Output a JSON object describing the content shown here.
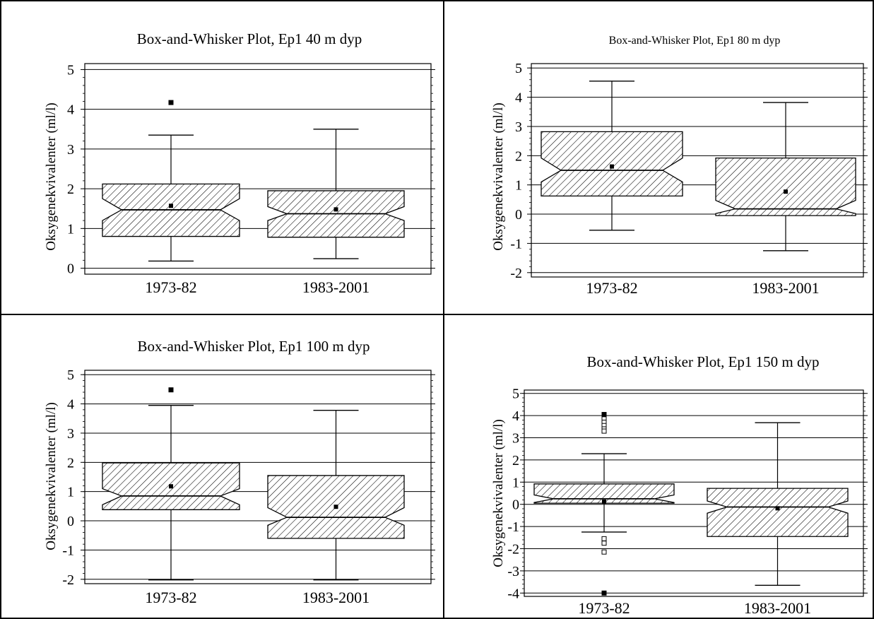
{
  "chart_data": [
    {
      "type": "box",
      "title": "Box-and-Whisker Plot, Ep1 40 m dyp",
      "ylabel": "Oksygenekvivalenter (ml/l)",
      "xlabel": "",
      "categories": [
        "1973-82",
        "1983-2001"
      ],
      "yticks": [
        0,
        1,
        2,
        3,
        4,
        5
      ],
      "ylim": [
        -0.15,
        5.15
      ],
      "grid": true,
      "notched": true,
      "boxes": [
        {
          "category": "1973-82",
          "min": 0.18,
          "q1": 0.8,
          "median": 1.47,
          "q3": 2.12,
          "max": 3.35,
          "mean": 1.57,
          "notch_low": 1.2,
          "notch_high": 1.75,
          "outliers": [
            4.17
          ]
        },
        {
          "category": "1983-2001",
          "min": 0.24,
          "q1": 0.78,
          "median": 1.37,
          "q3": 1.95,
          "max": 3.5,
          "mean": 1.48,
          "notch_low": 1.2,
          "notch_high": 1.55,
          "outliers": []
        }
      ]
    },
    {
      "type": "box",
      "title": "Box-and-Whisker Plot, Ep1 80 m dyp",
      "ylabel": "Oksygenekvivalenter (ml/l)",
      "xlabel": "",
      "categories": [
        "1973-82",
        "1983-2001"
      ],
      "yticks": [
        -2,
        -1,
        0,
        1,
        2,
        3,
        4,
        5
      ],
      "ylim": [
        -2.15,
        5.15
      ],
      "grid": true,
      "notched": true,
      "boxes": [
        {
          "category": "1973-82",
          "min": -0.55,
          "q1": 0.62,
          "median": 1.5,
          "q3": 2.82,
          "max": 4.55,
          "mean": 1.63,
          "notch_low": 1.1,
          "notch_high": 1.92,
          "outliers": []
        },
        {
          "category": "1983-2001",
          "min": -1.25,
          "q1": -0.05,
          "median": 0.18,
          "q3": 1.92,
          "max": 3.82,
          "mean": 0.77,
          "notch_low": 0.02,
          "notch_high": 0.47,
          "outliers": []
        }
      ]
    },
    {
      "type": "box",
      "title": "Box-and-Whisker Plot, Ep1 100 m dyp",
      "ylabel": "Oksygenekvivalenter (ml/l)",
      "xlabel": "",
      "categories": [
        "1973-82",
        "1983-2001"
      ],
      "yticks": [
        -2,
        -1,
        0,
        1,
        2,
        3,
        4,
        5
      ],
      "ylim": [
        -2.15,
        5.15
      ],
      "grid": true,
      "notched": true,
      "boxes": [
        {
          "category": "1973-82",
          "min": -2.02,
          "q1": 0.38,
          "median": 0.85,
          "q3": 1.98,
          "max": 3.95,
          "mean": 1.18,
          "notch_low": 0.55,
          "notch_high": 1.1,
          "outliers": [
            4.48
          ]
        },
        {
          "category": "1983-2001",
          "min": -2.02,
          "q1": -0.6,
          "median": 0.12,
          "q3": 1.55,
          "max": 3.78,
          "mean": 0.48,
          "notch_low": -0.15,
          "notch_high": 0.45,
          "outliers": []
        }
      ]
    },
    {
      "type": "box",
      "title": "Box-and-Whisker Plot, Ep1 150 m dyp",
      "ylabel": "Oksygenekvivalenter (ml/l)",
      "xlabel": "",
      "categories": [
        "1973-82",
        "1983-2001"
      ],
      "yticks": [
        -4,
        -3,
        -2,
        -1,
        0,
        1,
        2,
        3,
        4,
        5
      ],
      "ylim": [
        -4.15,
        5.15
      ],
      "grid": true,
      "notched": true,
      "boxes": [
        {
          "category": "1973-82",
          "min": -1.25,
          "q1": 0.05,
          "median": 0.25,
          "q3": 0.92,
          "max": 2.28,
          "mean": 0.12,
          "notch_low": 0.08,
          "notch_high": 0.42,
          "outliers": [
            4.05,
            3.85,
            3.7,
            3.55,
            3.4,
            3.3,
            -1.55,
            -1.75,
            -2.15,
            -4.0
          ]
        },
        {
          "category": "1983-2001",
          "min": -3.65,
          "q1": -1.45,
          "median": -0.12,
          "q3": 0.72,
          "max": 3.68,
          "mean": -0.18,
          "notch_low": -0.4,
          "notch_high": 0.15,
          "outliers": []
        }
      ]
    }
  ]
}
